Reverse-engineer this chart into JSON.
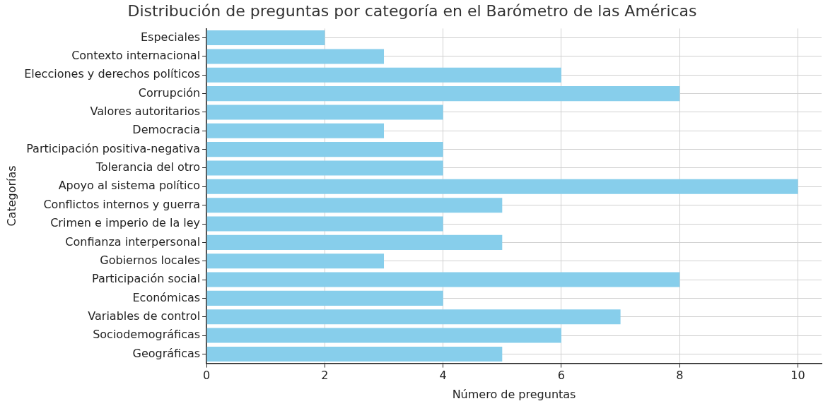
{
  "chart_data": {
    "type": "bar",
    "orientation": "horizontal",
    "title": "Distribución de preguntas por categoría en el Barómetro de las Américas",
    "xlabel": "Número de preguntas",
    "ylabel": "Categorías",
    "categories": [
      "Especiales",
      "Contexto internacional",
      "Elecciones y derechos políticos",
      "Corrupción",
      "Valores autoritarios",
      "Democracia",
      "Participación positiva-negativa",
      "Tolerancia del otro",
      "Apoyo al sistema político",
      "Conflictos internos y guerra",
      "Crimen e imperio de la ley",
      "Confianza interpersonal",
      "Gobiernos locales",
      "Participación social",
      "Económicas",
      "Variables de control",
      "Sociodemográficas",
      "Geográficas"
    ],
    "values": [
      2,
      3,
      6,
      8,
      4,
      3,
      4,
      4,
      10,
      5,
      4,
      5,
      3,
      8,
      4,
      7,
      6,
      5
    ],
    "color": "#87ceeb",
    "xlim": [
      0,
      10.4
    ],
    "xticks": [
      0,
      2,
      4,
      6,
      8,
      10
    ],
    "grid": true,
    "legend": false
  }
}
